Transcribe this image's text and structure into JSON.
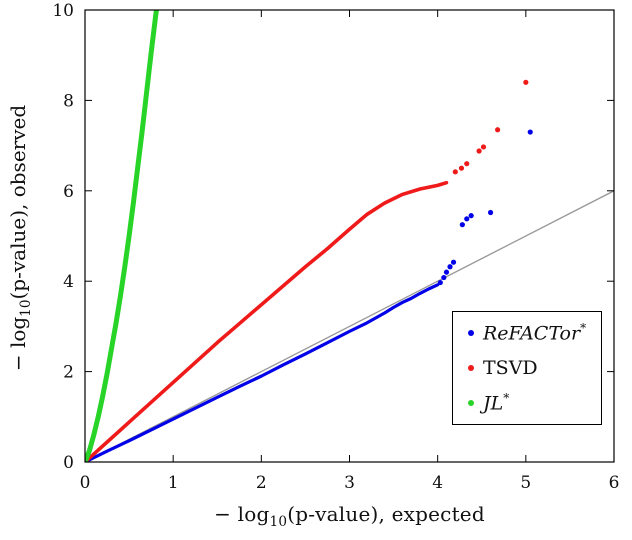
{
  "figure": {
    "background": "#ffffff"
  },
  "chart_data": {
    "type": "scatter",
    "title": "",
    "xlabel": "-log10(p-value), expected",
    "ylabel": "-log10(p-value), observed",
    "xlabel_parts": {
      "pre": "− log",
      "sub": "10",
      "post": "(p-value), expected"
    },
    "ylabel_parts": {
      "pre": "− log",
      "sub": "10",
      "post": "(p-value), observed"
    },
    "xlim": [
      0,
      6
    ],
    "ylim": [
      0,
      10
    ],
    "xticks": [
      0,
      1,
      2,
      3,
      4,
      5,
      6
    ],
    "yticks": [
      0,
      2,
      4,
      6,
      8,
      10
    ],
    "grid": false,
    "legend_position": "lower right inside",
    "reference_line": {
      "name": "y = x",
      "color": "#9a9a9a",
      "points": [
        [
          0,
          0
        ],
        [
          6,
          6
        ]
      ]
    },
    "series": [
      {
        "name": "ReFACTor*",
        "color": "#0202e8",
        "marker": "dot",
        "curve": [
          [
            0,
            0
          ],
          [
            0.25,
            0.24
          ],
          [
            0.5,
            0.47
          ],
          [
            0.75,
            0.71
          ],
          [
            1,
            0.95
          ],
          [
            1.25,
            1.19
          ],
          [
            1.5,
            1.43
          ],
          [
            1.75,
            1.67
          ],
          [
            2,
            1.9
          ],
          [
            2.25,
            2.15
          ],
          [
            2.5,
            2.39
          ],
          [
            2.75,
            2.64
          ],
          [
            3,
            2.89
          ],
          [
            3.2,
            3.08
          ],
          [
            3.4,
            3.3
          ],
          [
            3.5,
            3.42
          ],
          [
            3.6,
            3.53
          ],
          [
            3.7,
            3.62
          ],
          [
            3.8,
            3.73
          ],
          [
            3.9,
            3.83
          ],
          [
            4,
            3.92
          ]
        ],
        "outliers": [
          [
            4.03,
            3.97
          ],
          [
            4.07,
            4.08
          ],
          [
            4.1,
            4.2
          ],
          [
            4.14,
            4.32
          ],
          [
            4.18,
            4.42
          ],
          [
            4.28,
            5.25
          ],
          [
            4.33,
            5.38
          ],
          [
            4.38,
            5.45
          ],
          [
            4.6,
            5.52
          ],
          [
            5.05,
            7.3
          ]
        ]
      },
      {
        "name": "TSVD",
        "color": "#ef1a1a",
        "marker": "dot",
        "curve": [
          [
            0,
            0
          ],
          [
            0.25,
            0.44
          ],
          [
            0.5,
            0.88
          ],
          [
            0.75,
            1.32
          ],
          [
            1,
            1.76
          ],
          [
            1.25,
            2.2
          ],
          [
            1.5,
            2.64
          ],
          [
            1.75,
            3.06
          ],
          [
            2,
            3.48
          ],
          [
            2.25,
            3.9
          ],
          [
            2.5,
            4.32
          ],
          [
            2.75,
            4.72
          ],
          [
            3,
            5.15
          ],
          [
            3.2,
            5.48
          ],
          [
            3.4,
            5.73
          ],
          [
            3.6,
            5.92
          ],
          [
            3.8,
            6.04
          ],
          [
            4,
            6.12
          ],
          [
            4.1,
            6.18
          ]
        ],
        "outliers": [
          [
            4.2,
            6.42
          ],
          [
            4.27,
            6.5
          ],
          [
            4.33,
            6.6
          ],
          [
            4.47,
            6.88
          ],
          [
            4.52,
            6.97
          ],
          [
            4.68,
            7.35
          ],
          [
            5.0,
            8.4
          ]
        ]
      },
      {
        "name": "JL*",
        "color": "#27d427",
        "marker": "dot",
        "curve": [
          [
            0,
            0
          ],
          [
            0.05,
            0.25
          ],
          [
            0.1,
            0.6
          ],
          [
            0.15,
            1.0
          ],
          [
            0.2,
            1.45
          ],
          [
            0.25,
            1.95
          ],
          [
            0.3,
            2.5
          ],
          [
            0.35,
            3.05
          ],
          [
            0.4,
            3.65
          ],
          [
            0.45,
            4.3
          ],
          [
            0.5,
            5.0
          ],
          [
            0.55,
            5.75
          ],
          [
            0.6,
            6.55
          ],
          [
            0.65,
            7.35
          ],
          [
            0.7,
            8.2
          ],
          [
            0.75,
            9.05
          ],
          [
            0.8,
            9.85
          ],
          [
            0.82,
            10.15
          ]
        ],
        "outliers": []
      }
    ]
  },
  "legend": {
    "entries": [
      {
        "label": "ReFACTor",
        "sup": "*",
        "series": "ReFACTor*",
        "color": "#0202e8",
        "italic": true
      },
      {
        "label": "TSVD",
        "sup": "",
        "series": "TSVD",
        "color": "#ef1a1a",
        "italic": false
      },
      {
        "label": "JL",
        "sup": "*",
        "series": "JL*",
        "color": "#27d427",
        "italic": true
      }
    ]
  }
}
